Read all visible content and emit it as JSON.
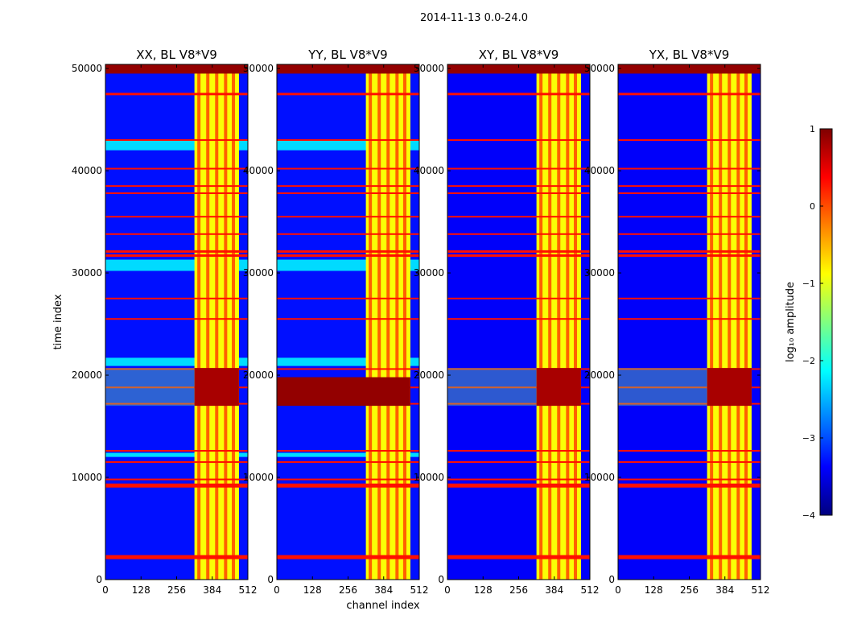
{
  "figure_title": "2014-11-13 0.0-24.0",
  "chart_data": {
    "type": "heatmap",
    "title": "2014-11-13 0.0-24.0",
    "xlabel": "channel index",
    "ylabel": "time index",
    "xlim": [
      0,
      512
    ],
    "ylim": [
      0,
      50400
    ],
    "xticks": [
      0,
      128,
      256,
      384,
      512
    ],
    "yticks": [
      0,
      10000,
      20000,
      30000,
      40000,
      50000
    ],
    "colorbar": {
      "label": "log₁₀ amplitude",
      "range": [
        -4,
        1
      ],
      "ticks": [
        1,
        0,
        -1,
        -2,
        -3,
        -4
      ],
      "colormap": [
        "#00007f",
        "#0000ff",
        "#0080ff",
        "#00ffff",
        "#80ff80",
        "#ffff00",
        "#ff8000",
        "#ff0000",
        "#7f0000"
      ]
    },
    "panels": [
      {
        "title": "XX, BL V8*V9",
        "background_log_amp": -3.3,
        "band": {
          "start": 320,
          "end": 480,
          "lines": [
            336,
            368,
            400,
            432,
            460
          ]
        },
        "flagged_rows_log_amp": 0.3,
        "flagged_rows": [
          2200,
          9200,
          9800,
          11500,
          12600,
          17200,
          18800,
          20600,
          25500,
          27500,
          31700,
          32100,
          33800,
          35500,
          37800,
          38500,
          40200,
          43000,
          47500
        ],
        "strong_rfi_rows": {
          "range": [
            17000,
            20700
          ],
          "log_amp": 0.8
        },
        "weak_stripes": [
          [
            12000,
            12400
          ],
          [
            20900,
            21700
          ],
          [
            30200,
            31300
          ],
          [
            42000,
            43000
          ]
        ],
        "top_row_log_amp": 0.9
      },
      {
        "title": "YY, BL V8*V9",
        "background_log_amp": -3.3,
        "band": {
          "start": 320,
          "end": 480,
          "lines": [
            336,
            368,
            400,
            432,
            460
          ]
        },
        "flagged_rows_log_amp": 0.3,
        "flagged_rows": [
          2200,
          9200,
          9800,
          11500,
          12600,
          17200,
          18800,
          20600,
          25500,
          27500,
          31700,
          32100,
          33800,
          35500,
          37800,
          38500,
          40200,
          43000,
          47500
        ],
        "strong_rfi_rows": {
          "range": [
            17000,
            19800
          ],
          "log_amp": 0.9
        },
        "weak_stripes": [
          [
            12000,
            12400
          ],
          [
            20900,
            21700
          ],
          [
            30200,
            31300
          ],
          [
            42000,
            43000
          ]
        ],
        "top_row_log_amp": 0.9
      },
      {
        "title": "XY, BL V8*V9",
        "background_log_amp": -3.4,
        "band": {
          "start": 320,
          "end": 480,
          "lines": [
            336,
            368,
            400,
            432,
            460
          ]
        },
        "flagged_rows_log_amp": 0.3,
        "flagged_rows": [
          2200,
          9200,
          9800,
          11500,
          12600,
          17200,
          18800,
          20600,
          25500,
          27500,
          31700,
          32100,
          33800,
          35500,
          37800,
          38500,
          40200,
          43000,
          47500
        ],
        "strong_rfi_rows": {
          "range": [
            17000,
            20700
          ],
          "log_amp": 0.8
        },
        "weak_stripes": [],
        "top_row_log_amp": 0.9
      },
      {
        "title": "YX, BL V8*V9",
        "background_log_amp": -3.4,
        "band": {
          "start": 320,
          "end": 480,
          "lines": [
            336,
            368,
            400,
            432,
            460
          ]
        },
        "flagged_rows_log_amp": 0.3,
        "flagged_rows": [
          2200,
          9200,
          9800,
          11500,
          12600,
          17200,
          18800,
          20600,
          25500,
          27500,
          31700,
          32100,
          33800,
          35500,
          37800,
          38500,
          40200,
          43000,
          47500
        ],
        "strong_rfi_rows": {
          "range": [
            17000,
            20700
          ],
          "log_amp": 0.8
        },
        "weak_stripes": [],
        "top_row_log_amp": 0.9
      }
    ]
  }
}
